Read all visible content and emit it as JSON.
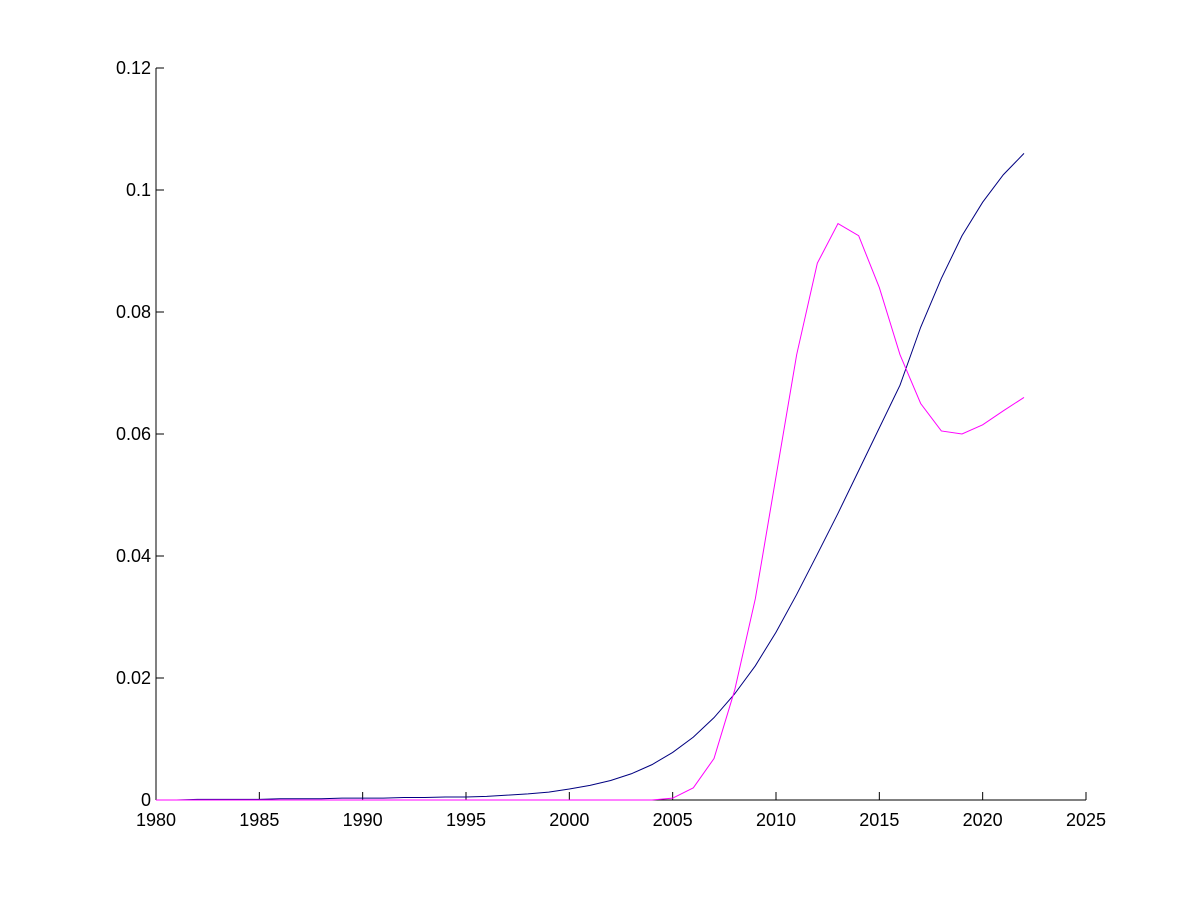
{
  "chart_data": {
    "type": "line",
    "x": [
      1980,
      1981,
      1982,
      1983,
      1984,
      1985,
      1986,
      1987,
      1988,
      1989,
      1990,
      1991,
      1992,
      1993,
      1994,
      1995,
      1996,
      1997,
      1998,
      1999,
      2000,
      2001,
      2002,
      2003,
      2004,
      2005,
      2006,
      2007,
      2008,
      2009,
      2010,
      2011,
      2012,
      2013,
      2014,
      2015,
      2016,
      2017,
      2018,
      2019,
      2020,
      2021,
      2022
    ],
    "series": [
      {
        "color": "#000080",
        "values": [
          0,
          0,
          0.0001,
          0.0001,
          0.0001,
          0.0001,
          0.0002,
          0.0002,
          0.0002,
          0.0003,
          0.0003,
          0.0003,
          0.0004,
          0.0004,
          0.0005,
          0.0005,
          0.0006,
          0.0008,
          0.001,
          0.0013,
          0.0018,
          0.0024,
          0.0032,
          0.0043,
          0.0058,
          0.0078,
          0.0103,
          0.0135,
          0.0174,
          0.022,
          0.0275,
          0.0337,
          0.0403,
          0.047,
          0.054,
          0.061,
          0.068,
          0.0775,
          0.0855,
          0.0925,
          0.098,
          0.1025,
          0.106
        ]
      },
      {
        "color": "#ff00ff",
        "values": [
          0,
          0,
          0,
          0,
          0,
          0,
          0,
          0,
          0,
          0,
          0,
          0,
          0,
          0,
          0,
          0,
          0,
          0,
          0,
          0,
          0,
          0,
          0,
          0,
          0,
          0.0003,
          0.002,
          0.0068,
          0.018,
          0.033,
          0.053,
          0.073,
          0.088,
          0.0945,
          0.0925,
          0.084,
          0.073,
          0.065,
          0.0605,
          0.06,
          0.0615,
          0.0638,
          0.066
        ]
      }
    ],
    "xlim": [
      1980,
      2025
    ],
    "xticks": [
      1980,
      1985,
      1990,
      1995,
      2000,
      2005,
      2010,
      2015,
      2020,
      2025
    ],
    "ylim": [
      0,
      0.12
    ],
    "yticks": [
      0,
      0.02,
      0.04,
      0.06,
      0.08,
      0.1,
      0.12
    ],
    "grid": false
  }
}
